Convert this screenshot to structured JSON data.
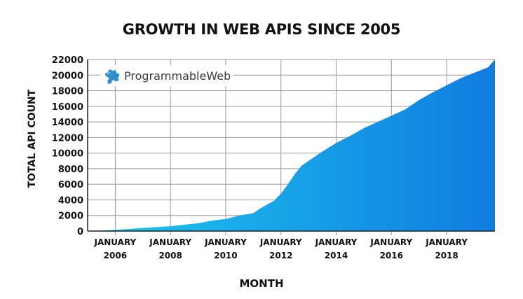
{
  "chart_data": {
    "type": "area",
    "title": "GROWTH IN WEB APIS SINCE 2005",
    "xlabel": "MONTH",
    "ylabel": "TOTAL API COUNT",
    "ylim": [
      0,
      22000
    ],
    "xlim": [
      2005.0,
      2019.75
    ],
    "yticks": [
      0,
      2000,
      4000,
      6000,
      8000,
      10000,
      12000,
      14000,
      16000,
      18000,
      20000,
      22000
    ],
    "xticks": [
      {
        "x": 2006,
        "line1": "JANUARY",
        "line2": "2006"
      },
      {
        "x": 2008,
        "line1": "JANUARY",
        "line2": "2008"
      },
      {
        "x": 2010,
        "line1": "JANUARY",
        "line2": "2010"
      },
      {
        "x": 2012,
        "line1": "JANUARY",
        "line2": "2012"
      },
      {
        "x": 2014,
        "line1": "JANUARY",
        "line2": "2014"
      },
      {
        "x": 2016,
        "line1": "JANUARY",
        "line2": "2016"
      },
      {
        "x": 2018,
        "line1": "JANUARY",
        "line2": "2018"
      }
    ],
    "grid": true,
    "x": [
      2005.0,
      2005.5,
      2006.0,
      2006.5,
      2007.0,
      2007.5,
      2008.0,
      2008.5,
      2009.0,
      2009.5,
      2010.0,
      2010.5,
      2011.0,
      2011.25,
      2011.5,
      2011.75,
      2012.0,
      2012.25,
      2012.5,
      2012.75,
      2013.0,
      2013.5,
      2014.0,
      2014.5,
      2015.0,
      2015.5,
      2016.0,
      2016.5,
      2017.0,
      2017.5,
      2018.0,
      2018.5,
      2019.0,
      2019.5,
      2019.75
    ],
    "values": [
      0,
      80,
      150,
      270,
      400,
      520,
      620,
      820,
      1000,
      1350,
      1550,
      2000,
      2300,
      2900,
      3400,
      3900,
      4800,
      6000,
      7300,
      8400,
      9000,
      10200,
      11300,
      12200,
      13200,
      14000,
      14800,
      15600,
      16800,
      17800,
      18700,
      19600,
      20300,
      21000,
      22000
    ],
    "color_start": "#1ec8ee",
    "color_end": "#0f7de0"
  },
  "logo": {
    "text": "ProgrammableWeb",
    "icon": "puzzle-piece-icon",
    "icon_color": "#2e8fcf"
  }
}
